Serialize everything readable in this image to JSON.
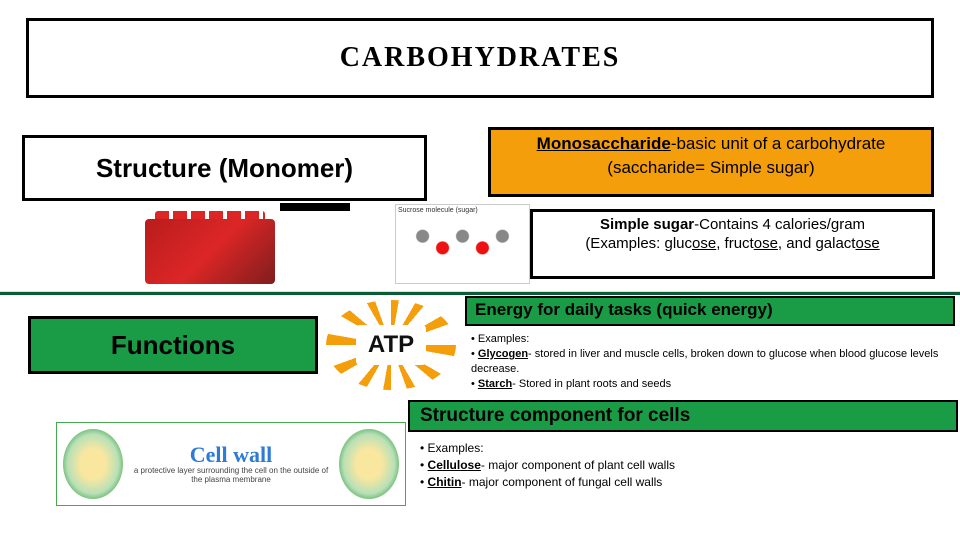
{
  "colors": {
    "border": "#000000",
    "orange_box": "#f59e0b",
    "green_box": "#1a9c47",
    "green_divider": "#0a5c36",
    "lego_red": "#b91c1c",
    "cellwall_blue": "#2e7bd6",
    "background": "#ffffff"
  },
  "title": "CARBOHYDRATES",
  "structure": {
    "label": "Structure (Monomer)",
    "mono_prefix": "Monosaccharide",
    "mono_rest": "-basic unit of a carbohydrate",
    "mono_line2": "(saccharide= Simple sugar)",
    "simple_prefix": "Simple sugar",
    "simple_rest": "-Contains 4 calories/gram",
    "simple_ex_pre": "(Examples: gluc",
    "simple_ose1": "ose",
    "simple_mid1": ", fruct",
    "simple_ose2": "ose",
    "simple_mid2": ", and galact",
    "simple_ose3": "ose"
  },
  "molecule_caption": "Sucrose molecule (sugar)",
  "functions": {
    "label": "Functions",
    "atp": "ATP",
    "energy_title": "Energy for daily tasks (quick energy)",
    "energy_ex_label": "• Examples:",
    "glycogen_name": "Glycogen",
    "glycogen_rest": "- stored in liver and muscle cells, broken down to glucose when blood glucose levels decrease.",
    "starch_name": "Starch",
    "starch_rest": "- Stored in plant roots and seeds",
    "struct_title": "Structure component for cells",
    "struct_ex_label": "• Examples:",
    "cellulose_name": "Cellulose",
    "cellulose_rest": "- major component of plant cell walls",
    "chitin_name": "Chitin",
    "chitin_rest": "- major component of fungal cell walls"
  },
  "cellwall": {
    "title": "Cell wall",
    "subtitle": "a protective layer surrounding the cell on the outside of the plasma membrane"
  }
}
